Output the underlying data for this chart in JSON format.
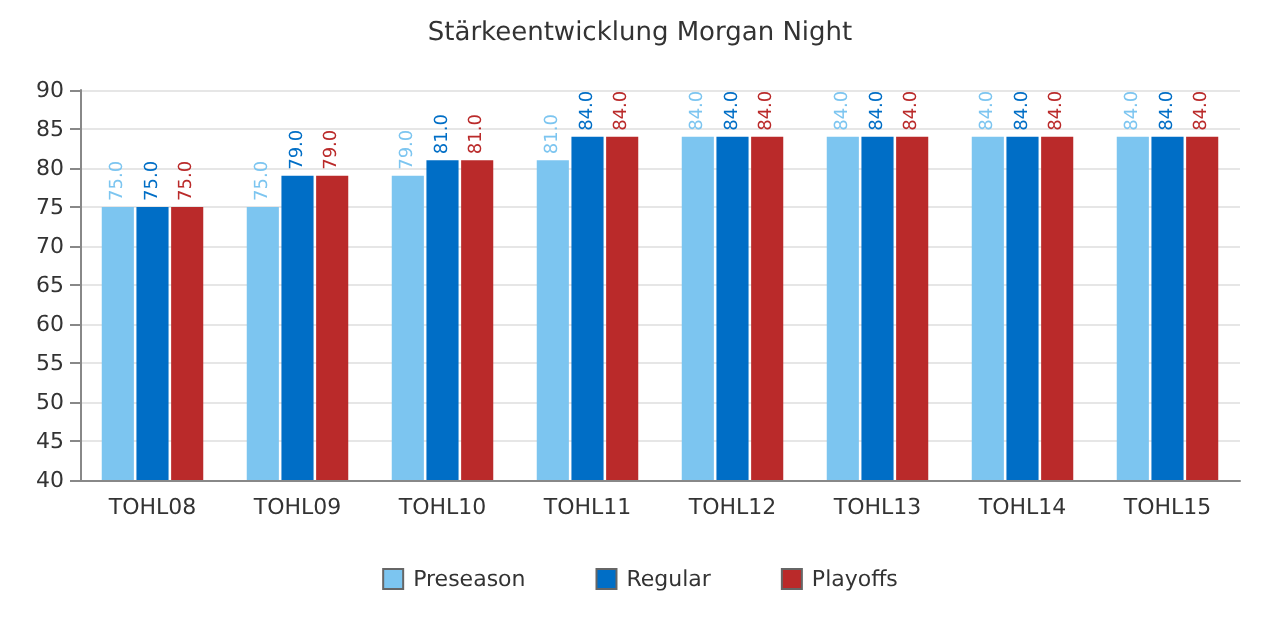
{
  "chart_data": {
    "type": "bar",
    "title": "Stärkeentwicklung Morgan Night",
    "categories": [
      "TOHL08",
      "TOHL09",
      "TOHL10",
      "TOHL11",
      "TOHL12",
      "TOHL13",
      "TOHL14",
      "TOHL15"
    ],
    "series": [
      {
        "name": "Preseason",
        "color": "#7cc5f0",
        "values": [
          75,
          75,
          79,
          81,
          84,
          84,
          84,
          84
        ],
        "value_labels": [
          "75.0",
          "75.0",
          "79.0",
          "81.0",
          "84.0",
          "84.0",
          "84.0",
          "84.0"
        ]
      },
      {
        "name": "Regular",
        "color": "#006ec6",
        "values": [
          75,
          79,
          81,
          84,
          84,
          84,
          84,
          84
        ],
        "value_labels": [
          "75.0",
          "79.0",
          "81.0",
          "84.0",
          "84.0",
          "84.0",
          "84.0",
          "84.0"
        ]
      },
      {
        "name": "Playoffs",
        "color": "#ba2a2a",
        "values": [
          75,
          79,
          81,
          84,
          84,
          84,
          84,
          84
        ],
        "value_labels": [
          "75.0",
          "79.0",
          "81.0",
          "84.0",
          "84.0",
          "84.0",
          "84.0",
          "84.0"
        ]
      }
    ],
    "ylim": [
      40,
      90
    ],
    "yticks": [
      40,
      45,
      50,
      55,
      60,
      65,
      70,
      75,
      80,
      85,
      90
    ],
    "grid": "y",
    "legend": "bottom"
  }
}
